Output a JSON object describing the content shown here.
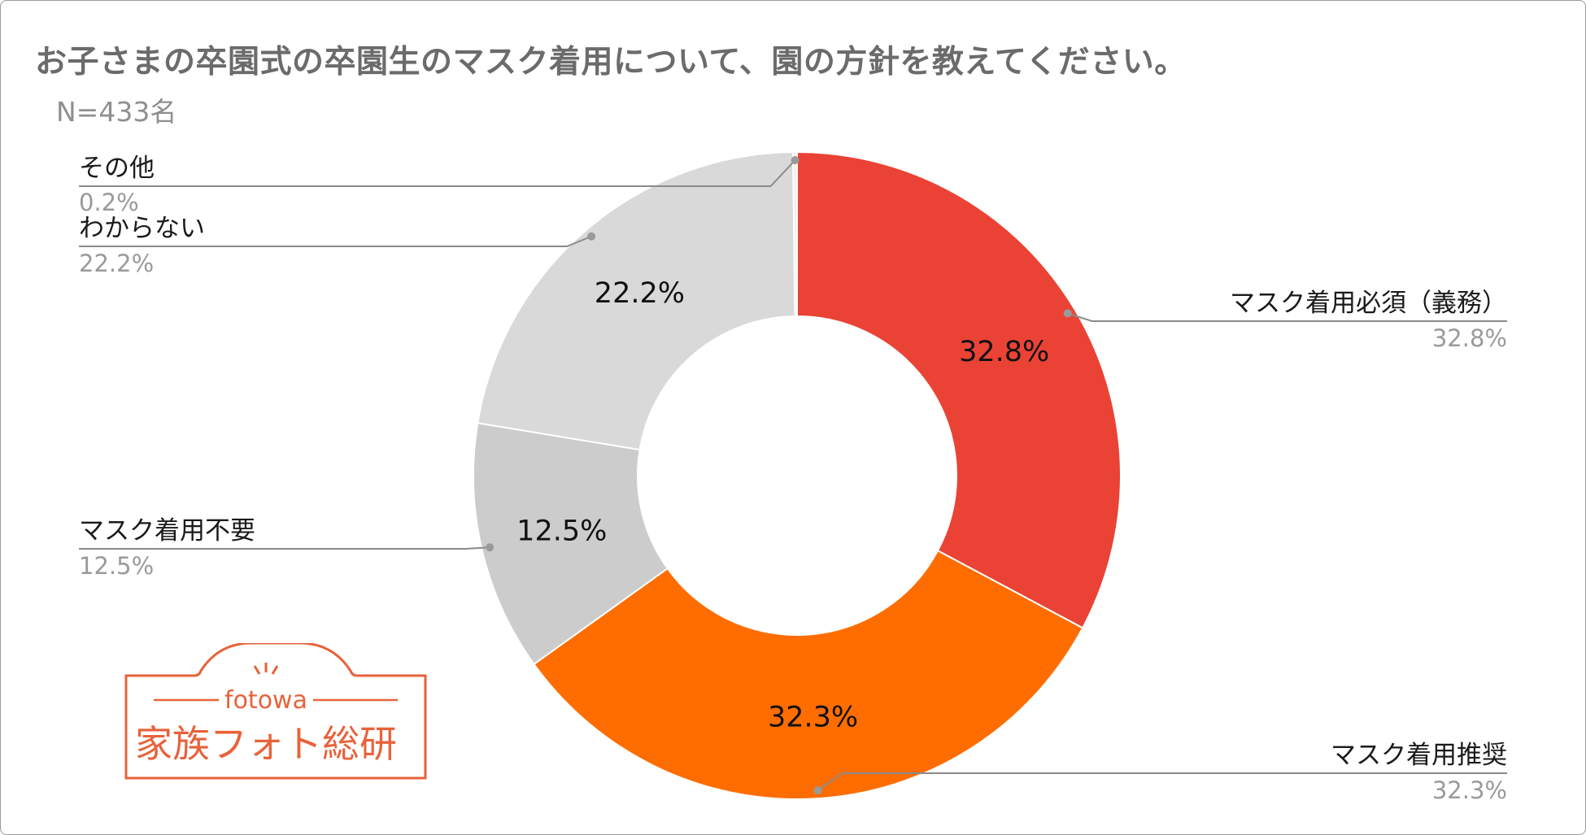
{
  "title": "お子さまの卒園式の卒園生のマスク着用について、園の方針を教えてください。",
  "subtitle": "N=433名",
  "chart_data": {
    "type": "pie",
    "donut": true,
    "slices": [
      {
        "name": "マスク着用必須（義務）",
        "value": 32.8,
        "label": "32.8%",
        "color": "#ea4335"
      },
      {
        "name": "マスク着用推奨",
        "value": 32.3,
        "label": "32.3%",
        "color": "#ff6d01"
      },
      {
        "name": "マスク着用不要",
        "value": 12.5,
        "label": "12.5%",
        "color": "#cccccc"
      },
      {
        "name": "わからない",
        "value": 22.2,
        "label": "22.2%",
        "color": "#d9d9d9"
      },
      {
        "name": "その他",
        "value": 0.2,
        "label": "0.2%",
        "color": "#efefef"
      }
    ]
  },
  "logo": {
    "brand": "fotowa",
    "name": "家族フォト総研"
  }
}
